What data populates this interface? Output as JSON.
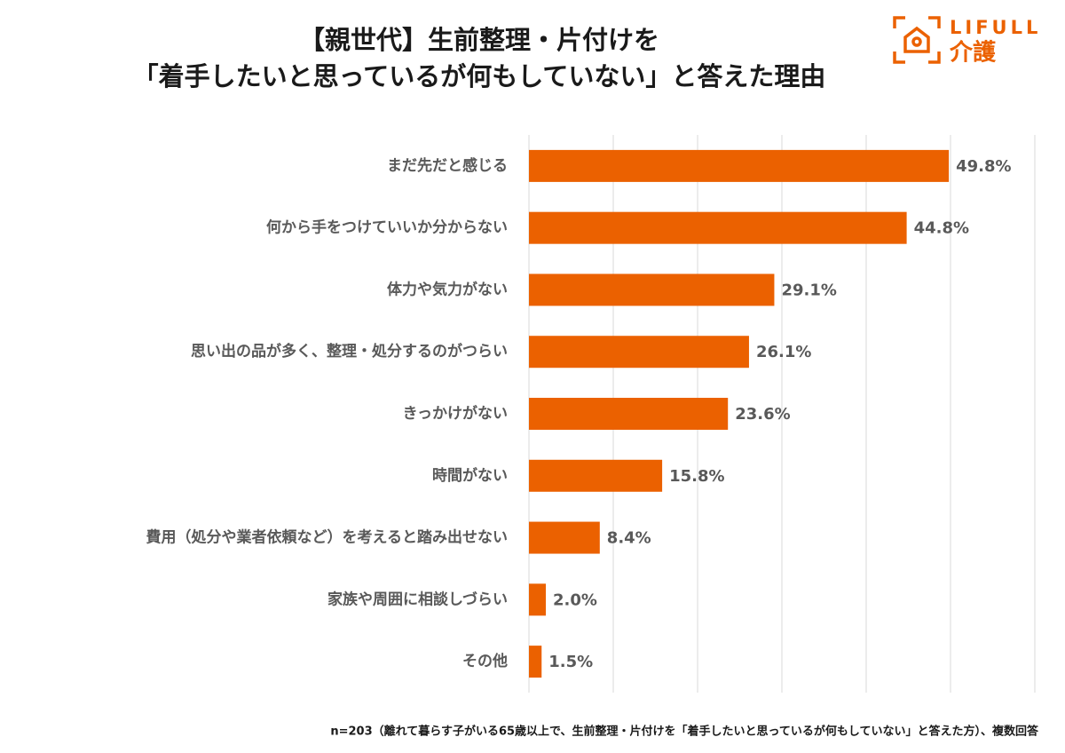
{
  "logo": {
    "brand": "LIFULL",
    "service": "介護"
  },
  "chart_data": {
    "type": "hbar",
    "title_lines": [
      "【親世代】生前整理・片付けを",
      "「着手したいと思っているが何もしていない」と答えた理由"
    ],
    "categories": [
      "まだ先だと感じる",
      "何から手をつけていいか分からない",
      "体力や気力がない",
      "思い出の品が多く、整理・処分するのがつらい",
      "きっかけがない",
      "時間がない",
      "費用（処分や業者依頼など）を考えると踏み出せない",
      "家族や周囲に相談しづらい",
      "その他"
    ],
    "values": [
      49.8,
      44.8,
      29.1,
      26.1,
      23.6,
      15.8,
      8.4,
      2.0,
      1.5
    ],
    "value_labels": [
      "49.8%",
      "44.8%",
      "29.1%",
      "26.1%",
      "23.6%",
      "15.8%",
      "8.4%",
      "2.0%",
      "1.5%"
    ],
    "color": "#eb6100",
    "xlim": [
      0,
      60
    ],
    "xticks": [
      0,
      10,
      20,
      30,
      40,
      50,
      60
    ],
    "grid": true,
    "footnote": "n=203（離れて暮らす子がいる65歳以上で、生前整理・片付けを「着手したいと思っているが何もしていない」と答えた方）、複数回答"
  }
}
